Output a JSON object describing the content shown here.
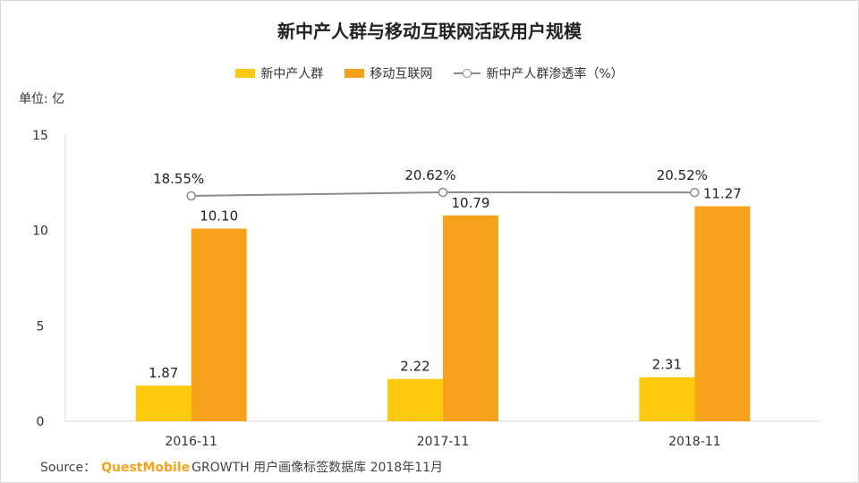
{
  "title": "新中产人群与移动互联网活跃用户规模",
  "unit_label": "单位: 亿",
  "legend": {
    "series1": "新中产人群",
    "series2": "移动互联网",
    "series3": "新中产人群渗透率（%）"
  },
  "source": {
    "prefix": "Source：",
    "brand": "QuestMobile",
    "text": "GROWTH 用户画像标签数据库 2018年11月"
  },
  "colors": {
    "series1": "#ffc90e",
    "series2": "#f7a21b",
    "line": "#8c8c8c",
    "axis": "#d9d9d9"
  },
  "chart_data": {
    "type": "bar",
    "title": "新中产人群与移动互联网活跃用户规模",
    "ylabel": "单位: 亿",
    "xlabel": "",
    "ylim": [
      0,
      15
    ],
    "yticks": [
      0,
      5,
      10,
      15
    ],
    "categories": [
      "2016-11",
      "2017-11",
      "2018-11"
    ],
    "series": [
      {
        "name": "新中产人群",
        "values": [
          1.87,
          2.22,
          2.31
        ],
        "labels": [
          "1.87",
          "2.22",
          "2.31"
        ]
      },
      {
        "name": "移动互联网",
        "values": [
          10.1,
          10.79,
          11.27
        ],
        "labels": [
          "10.10",
          "10.79",
          "11.27"
        ]
      }
    ],
    "line_series": {
      "name": "新中产人群渗透率（%）",
      "values": [
        18.55,
        20.62,
        20.52
      ],
      "labels": [
        "18.55%",
        "20.62%",
        "20.52%"
      ]
    },
    "legend_position": "top-center"
  }
}
